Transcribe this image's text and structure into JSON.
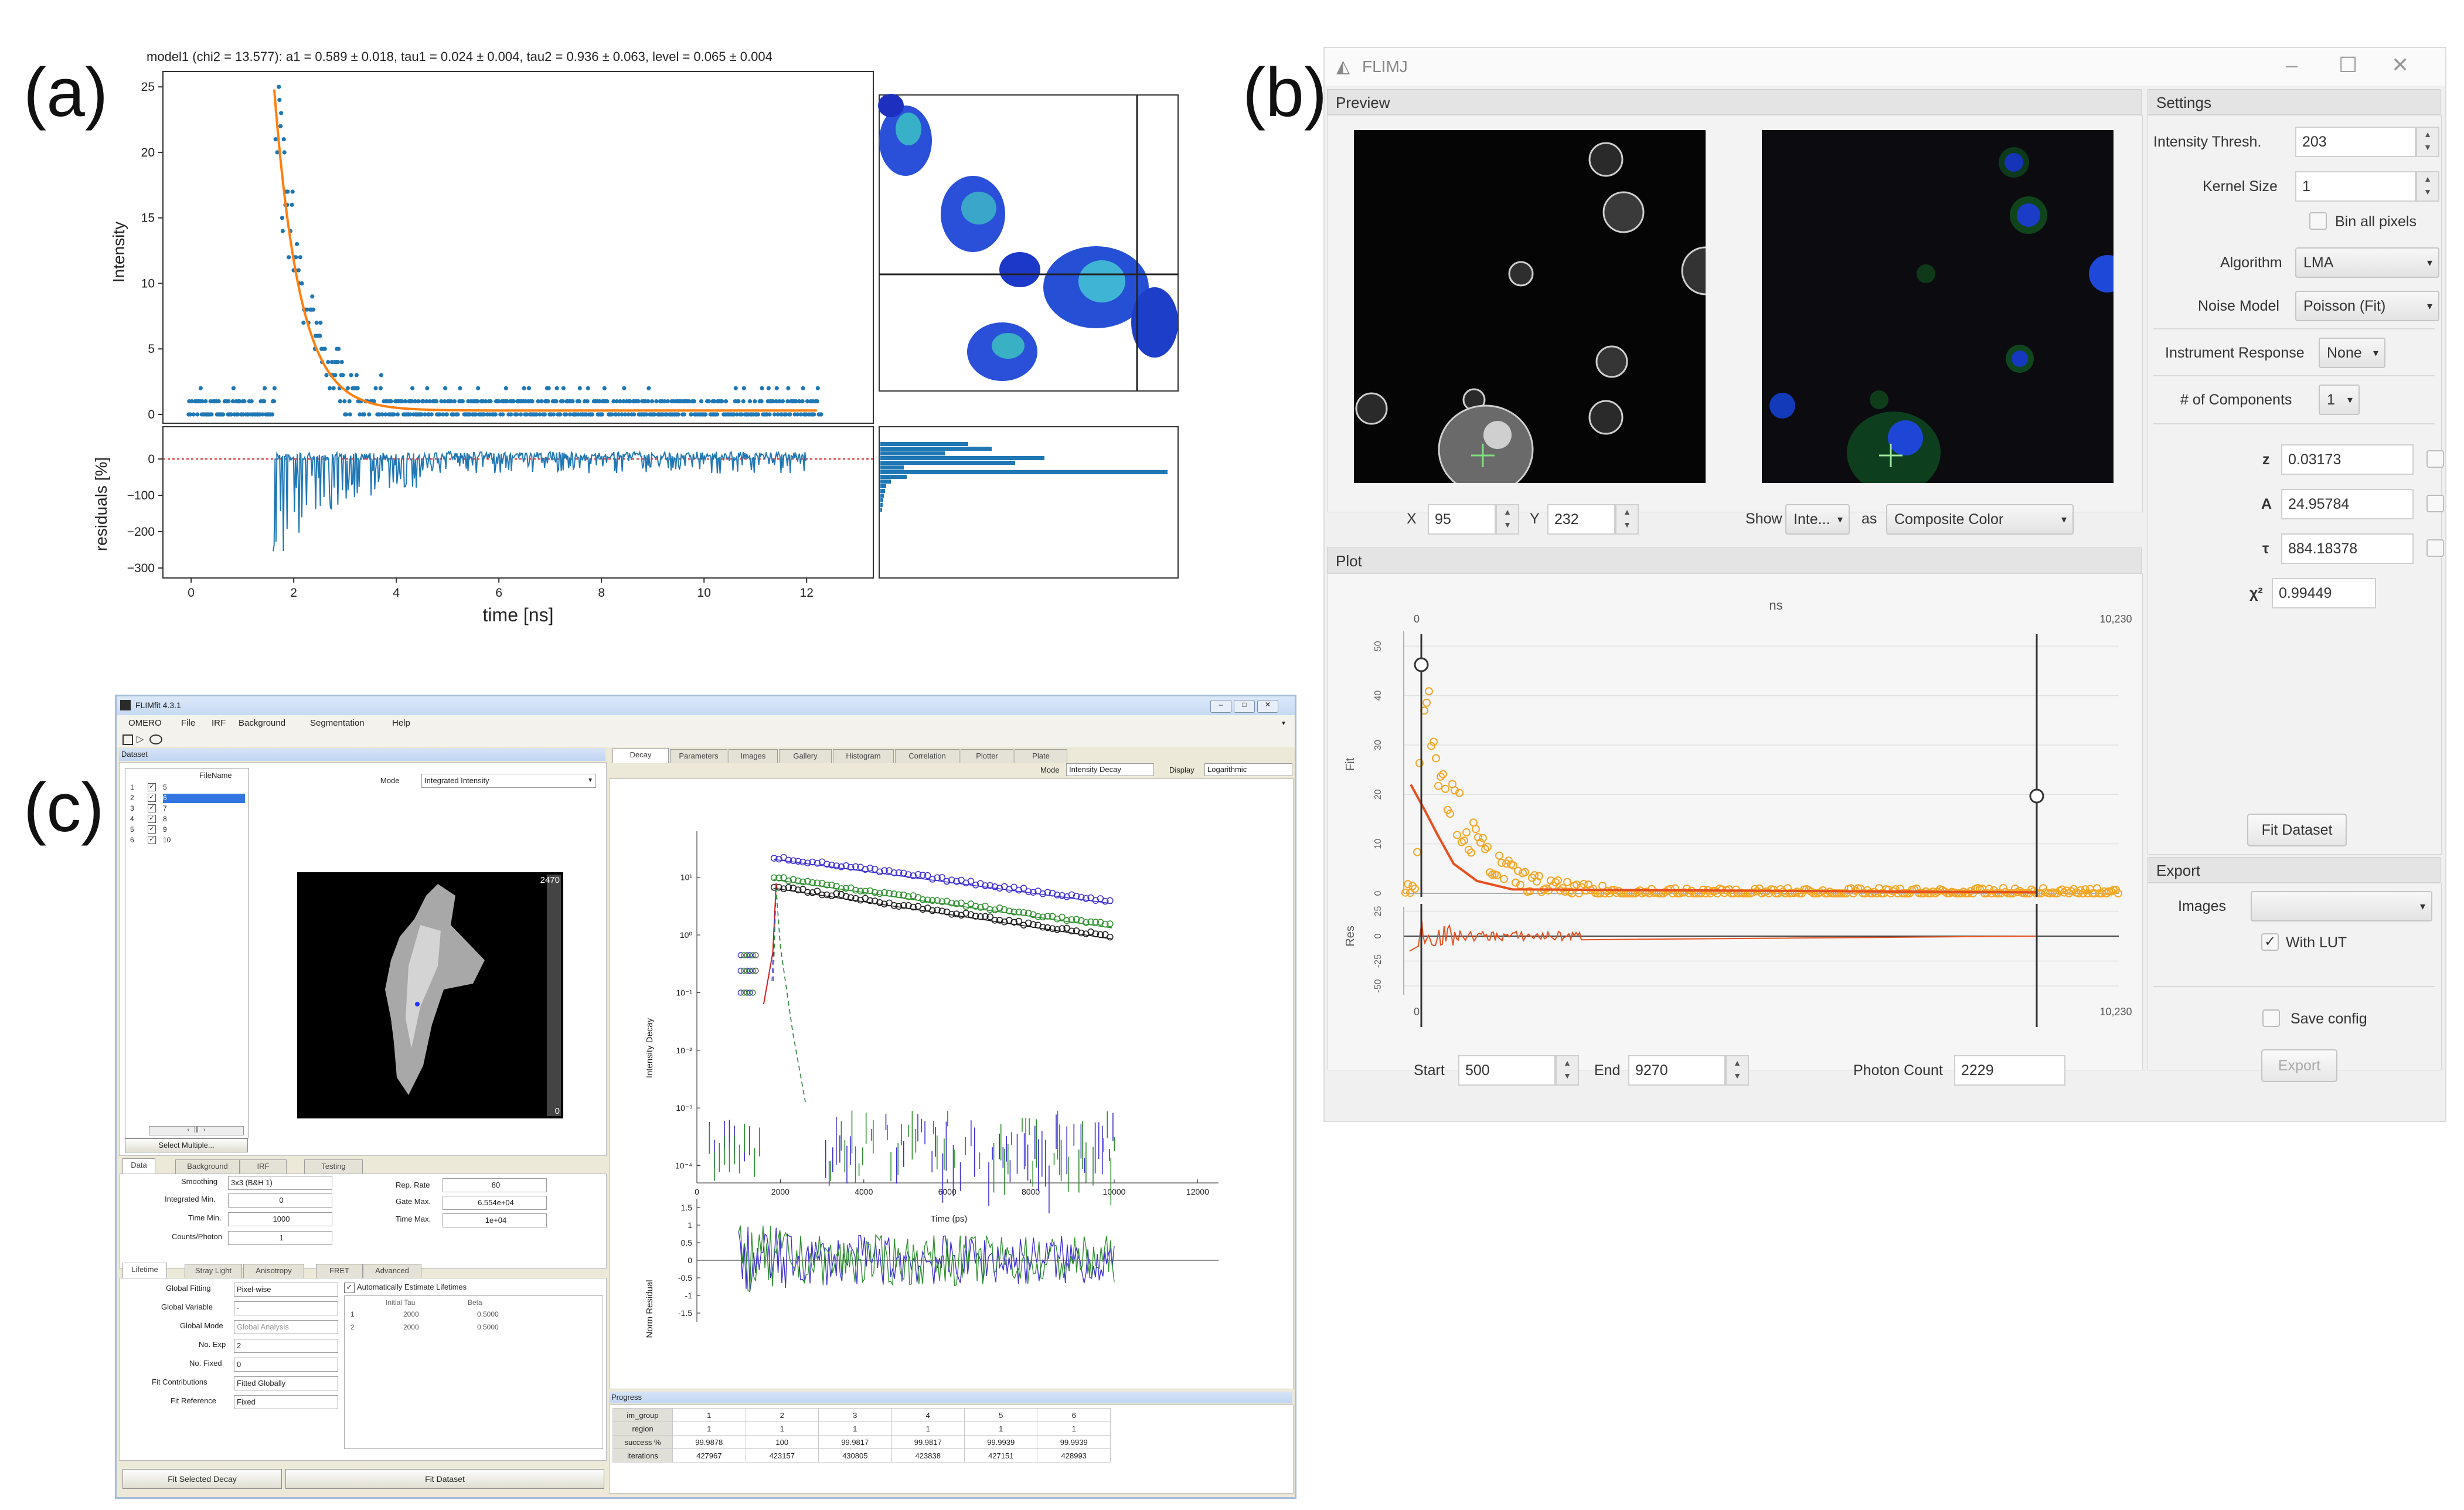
{
  "panel_labels": {
    "a": "(a)",
    "b": "(b)",
    "c": "(c)"
  },
  "panel_a": {
    "title": "model1 (chi2 = 13.577): a1 = 0.589 ± 0.018, tau1 = 0.024 ± 0.004, tau2 = 0.936 ± 0.063, level = 0.065 ± 0.004",
    "ylabel_top": "Intensity",
    "ylabel_bottom": "residuals [%]",
    "xlabel": "time [ns]",
    "yticks_top": [
      "0",
      "5",
      "10",
      "15",
      "20",
      "25"
    ],
    "yticks_bottom": [
      "0",
      "−100",
      "−200",
      "−300"
    ],
    "xticks": [
      "0",
      "2",
      "4",
      "6",
      "8",
      "10",
      "12"
    ],
    "colors": {
      "points": "#1f77b4",
      "fit": "#ff7f0e",
      "zero_line": "#d62728"
    }
  },
  "panel_b": {
    "window_title": "FLIMJ",
    "preview_header": "Preview",
    "plot_header": "Plot",
    "settings_header": "Settings",
    "export_header": "Export",
    "x_label": "X",
    "x_value": "95",
    "y_label": "Y",
    "y_value": "232",
    "show_label": "Show",
    "show_value": "Inte...",
    "as_label": "as",
    "as_value": "Composite Color",
    "intensity_thresh_label": "Intensity Thresh.",
    "intensity_thresh_value": "203",
    "kernel_size_label": "Kernel Size",
    "kernel_size_value": "1",
    "bin_all_pixels_label": "Bin all pixels",
    "algorithm_label": "Algorithm",
    "algorithm_value": "LMA",
    "noise_model_label": "Noise Model",
    "noise_model_value": "Poisson (Fit)",
    "instrument_response_label": "Instrument Response",
    "instrument_response_value": "None",
    "components_label": "# of Components",
    "components_value": "1",
    "z_label": "z",
    "z_value": "0.03173",
    "a_label": "A",
    "a_value": "24.95784",
    "tau_label": "τ",
    "tau_value": "884.18378",
    "chi2_label": "χ²",
    "chi2_value": "0.99449",
    "fit_dataset_label": "Fit Dataset",
    "images_label": "Images",
    "with_lut_label": "With LUT",
    "save_config_label": "Save config",
    "export_button_label": "Export",
    "start_label": "Start",
    "start_value": "500",
    "end_label": "End",
    "end_value": "9270",
    "photon_count_label": "Photon Count",
    "photon_count_value": "2229",
    "plot_unit": "ns",
    "plot_xmin": "0",
    "plot_xmax": "10,230",
    "fit_axis_label": "Fit",
    "res_axis_label": "Res",
    "fit_yticks": [
      "0",
      "10",
      "20",
      "30",
      "40",
      "50"
    ],
    "res_yticks": [
      "-50",
      "-25",
      "0",
      "25"
    ],
    "colors": {
      "fit_points": "#f5a623",
      "fit_curve": "#e8501e",
      "accent_green": "#7ee07e"
    }
  },
  "panel_c": {
    "window_title": "FLIMfit 4.3.1",
    "menu": [
      "OMERO",
      "File",
      "IRF",
      "Background",
      "Segmentation",
      "Help"
    ],
    "dataset_label": "Dataset",
    "filename_header": "FileName",
    "files": [
      {
        "row": "1",
        "name": "5"
      },
      {
        "row": "2",
        "name": "6"
      },
      {
        "row": "3",
        "name": "7"
      },
      {
        "row": "4",
        "name": "8"
      },
      {
        "row": "5",
        "name": "9"
      },
      {
        "row": "6",
        "name": "10"
      }
    ],
    "mode_label": "Mode",
    "mode_value": "Integrated Intensity",
    "image_max": "2470",
    "image_min": "0",
    "select_multiple": "Select Multiple...",
    "data_tabs": [
      "Data",
      "Background",
      "IRF",
      "Testing"
    ],
    "smoothing_label": "Smoothing",
    "smoothing_value": "3x3 (B&H 1)",
    "integrated_min_label": "Integrated Min.",
    "integrated_min_value": "0",
    "time_min_label": "Time Min.",
    "time_min_value": "1000",
    "counts_photon_label": "Counts/Photon",
    "counts_photon_value": "1",
    "rep_rate_label": "Rep. Rate",
    "rep_rate_value": "80",
    "gate_max_label": "Gate Max.",
    "gate_max_value": "6.554e+04",
    "time_max_label": "Time Max.",
    "time_max_value": "1e+04",
    "lifetime_tabs": [
      "Lifetime",
      "Stray Light",
      "Anisotropy",
      "FRET",
      "Advanced"
    ],
    "global_fitting_label": "Global Fitting",
    "global_fitting_value": "Pixel-wise",
    "global_variable_label": "Global Variable",
    "global_variable_value": "-",
    "global_mode_label": "Global Mode",
    "global_mode_value": "Global Analysis",
    "no_exp_label": "No. Exp",
    "no_exp_value": "2",
    "no_fixed_label": "No. Fixed",
    "no_fixed_value": "0",
    "fit_contributions_label": "Fit Contributions",
    "fit_contributions_value": "Fitted Globally",
    "fit_reference_label": "Fit Reference",
    "fit_reference_value": "Fixed",
    "auto_estimate_label": "Automatically Estimate Lifetimes",
    "tau_table_headers": [
      "Initial Tau",
      "Beta"
    ],
    "tau_rows": [
      {
        "i": "1",
        "tau": "2000",
        "beta": "0.5000"
      },
      {
        "i": "2",
        "tau": "2000",
        "beta": "0.5000"
      }
    ],
    "fit_selected_decay": "Fit Selected Decay",
    "fit_dataset": "Fit Dataset",
    "plot_tabs": [
      "Decay",
      "Parameters",
      "Images",
      "Gallery",
      "Histogram",
      "Correlation",
      "Plotter",
      "Plate"
    ],
    "plot_mode_label": "Mode",
    "plot_mode_value": "Intensity Decay",
    "display_label": "Display",
    "display_value": "Logarithmic",
    "decay_ylabel": "Intensity Decay",
    "decay_xlabel": "Time (ps)",
    "decay_yticks": [
      "10¹",
      "10⁰",
      "10⁻¹",
      "10⁻²",
      "10⁻³",
      "10⁻⁴"
    ],
    "decay_xticks": [
      "0",
      "2000",
      "4000",
      "6000",
      "8000",
      "10000",
      "12000"
    ],
    "resid_ylabel": "Norm Residual",
    "resid_yticks": [
      "1.5",
      "1",
      "0.5",
      "0",
      "-0.5",
      "-1",
      "-1.5"
    ],
    "progress_label": "Progress",
    "progress_headers": [
      "",
      "1",
      "2",
      "3",
      "4",
      "5",
      "6"
    ],
    "progress_rows": [
      [
        "im_group",
        "1",
        "2",
        "3",
        "4",
        "5",
        "6"
      ],
      [
        "region",
        "1",
        "1",
        "1",
        "1",
        "1",
        "1"
      ],
      [
        "success %",
        "99.9878",
        "100",
        "99.9817",
        "99.9817",
        "99.9939",
        "99.9939"
      ],
      [
        "iterations",
        "427967",
        "423157",
        "430805",
        "423838",
        "427151",
        "428993"
      ]
    ]
  }
}
